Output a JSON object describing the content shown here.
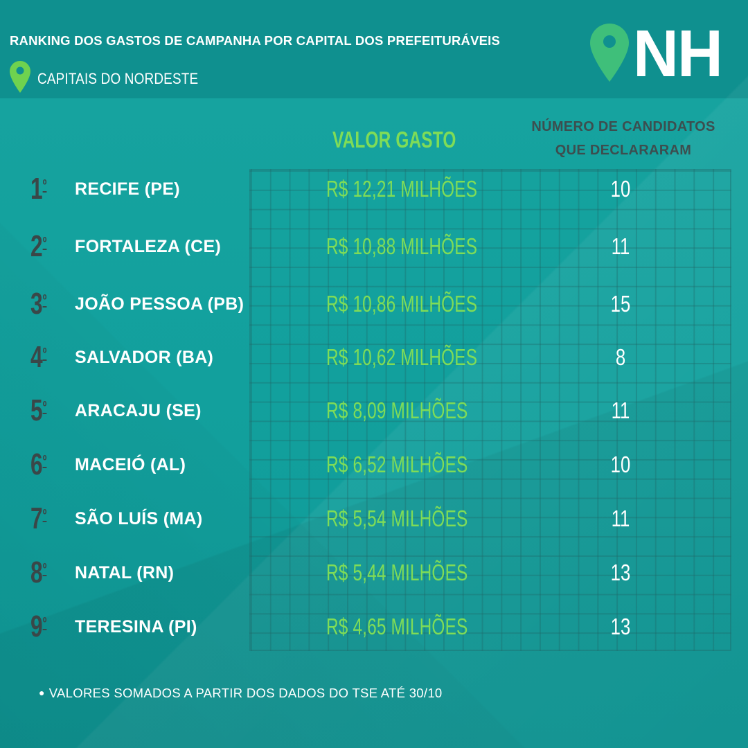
{
  "header": {
    "title": "RANKING DOS GASTOS DE CAMPANHA POR CAPITAL DOS PREFEITURÁVEIS",
    "subtitle": "CAPITAIS DO NORDESTE",
    "subtitle_icon": "map-pin-icon",
    "logo_text": "NH",
    "logo_icon": "map-pin-icon"
  },
  "columns": {
    "valor": "VALOR GASTO",
    "numero": [
      "NÚMERO DE CANDIDATOS",
      "QUE DECLARARAM"
    ]
  },
  "rows": [
    {
      "rank": "1",
      "ord": "º",
      "city": "RECIFE (PE)",
      "valor": "R$ 12,21 MILHÕES",
      "count": "10"
    },
    {
      "rank": "2",
      "ord": "º",
      "city": "FORTALEZA (CE)",
      "valor": "R$ 10,88 MILHÕES",
      "count": "11"
    },
    {
      "rank": "3",
      "ord": "º",
      "city": "JOÃO PESSOA (PB)",
      "valor": "R$ 10,86 MILHÕES",
      "count": "15"
    },
    {
      "rank": "4",
      "ord": "º",
      "city": "SALVADOR (BA)",
      "valor": "R$ 10,62 MILHÕES",
      "count": "8"
    },
    {
      "rank": "5",
      "ord": "º",
      "city": "ARACAJU (SE)",
      "valor": "R$ 8,09 MILHÕES",
      "count": "11"
    },
    {
      "rank": "6",
      "ord": "º",
      "city": "MACEIÓ (AL)",
      "valor": "R$ 6,52 MILHÕES",
      "count": "10"
    },
    {
      "rank": "7",
      "ord": "º",
      "city": "SÃO LUÍS (MA)",
      "valor": "R$ 5,54 MILHÕES",
      "count": "11"
    },
    {
      "rank": "8",
      "ord": "º",
      "city": "NATAL (RN)",
      "valor": "R$ 5,44 MILHÕES",
      "count": "13"
    },
    {
      "rank": "9",
      "ord": "º",
      "city": "TERESINA (PI)",
      "valor": "R$ 4,65 MILHÕES",
      "count": "13"
    }
  ],
  "footnote": "VALORES SOMADOS A PARTIR DOS DADOS DO TSE ATÉ 30/10",
  "colors": {
    "background": "#119e9c",
    "header_band": "#0f908f",
    "valor_text": "#7fdc57",
    "pin_green": "#6fd24f",
    "logo_pin": "#3fbf7a",
    "rank_text": "#3a4748",
    "column_header_text": "#3c4e4f"
  }
}
